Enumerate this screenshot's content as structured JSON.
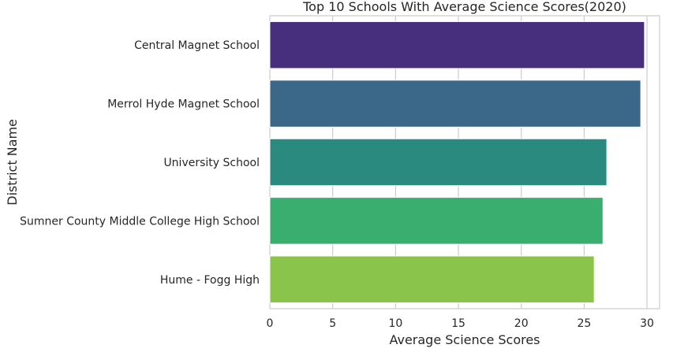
{
  "chart_data": {
    "type": "bar",
    "orientation": "horizontal",
    "title": "Top 10 Schools With Average Science Scores(2020)",
    "xlabel": "Average Science Scores",
    "ylabel": "District Name",
    "categories": [
      "Central Magnet School",
      "Merrol Hyde Magnet School",
      "University School",
      "Sumner County Middle College High School",
      "Hume - Fogg High"
    ],
    "values": [
      29.8,
      29.5,
      26.8,
      26.5,
      25.8
    ],
    "colors": [
      "#472f7d",
      "#3b6789",
      "#2a8a80",
      "#3aae6f",
      "#8ac44a"
    ],
    "xlim": [
      0,
      31
    ],
    "xticks": [
      0,
      5,
      10,
      15,
      20,
      25,
      30
    ],
    "grid": true,
    "grid_axis": "x",
    "legend": "none"
  }
}
